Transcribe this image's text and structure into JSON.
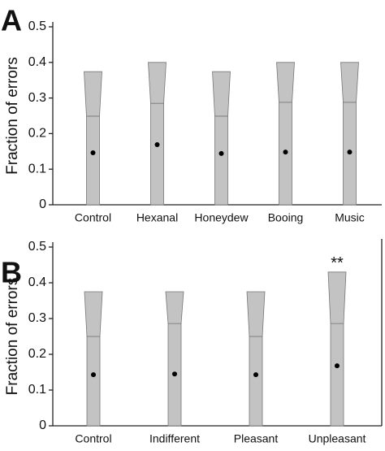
{
  "chart_data": [
    {
      "type": "funnel-bar",
      "panel_label": "A",
      "ylabel": "Fraction of errors",
      "categories": [
        "Control",
        "Hexanal",
        "Honeydew",
        "Booing",
        "Music"
      ],
      "values": [
        0.146,
        0.169,
        0.144,
        0.148,
        0.148
      ],
      "mid_values": [
        0.249,
        0.285,
        0.249,
        0.288,
        0.288
      ],
      "top_values": [
        0.374,
        0.4,
        0.374,
        0.4,
        0.4
      ],
      "color": "#c3c3c3",
      "marker_color": "#000000",
      "ylim": [
        0,
        0.5
      ],
      "yticks": [
        0,
        0.1,
        0.2,
        0.3,
        0.4,
        0.5
      ]
    },
    {
      "type": "funnel-bar",
      "panel_label": "B",
      "ylabel": "Fraction of errors",
      "categories": [
        "Control",
        "Indifferent",
        "Pleasant",
        "Unpleasant"
      ],
      "values": [
        0.143,
        0.145,
        0.143,
        0.168
      ],
      "mid_values": [
        0.25,
        0.286,
        0.25,
        0.286
      ],
      "top_values": [
        0.375,
        0.375,
        0.375,
        0.43
      ],
      "color": "#c3c3c3",
      "marker_color": "#000000",
      "ylim": [
        0,
        0.5
      ],
      "yticks": [
        0,
        0.1,
        0.2,
        0.3,
        0.4,
        0.5
      ],
      "annotations": [
        {
          "text": "**",
          "x": "Unpleasant"
        }
      ]
    }
  ]
}
